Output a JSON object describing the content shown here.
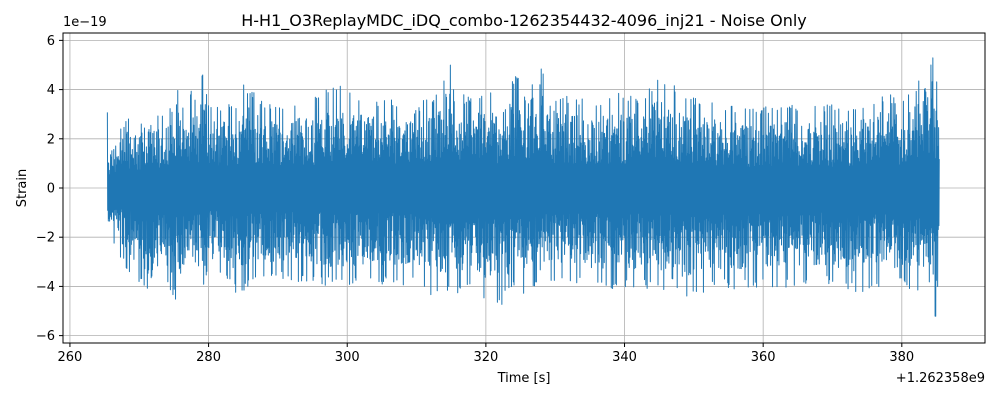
{
  "chart_data": {
    "type": "line",
    "title": "H-H1_O3ReplayMDC_iDQ_combo-1262354432-4096_inj21 - Noise Only",
    "xlabel": "Time [s]",
    "ylabel": "Strain",
    "x_offset_label": "+1.262358e9",
    "y_scale_label": "1e−19",
    "xlim": [
      259,
      392
    ],
    "ylim": [
      -6.3,
      6.3
    ],
    "x_ticks": [
      260,
      280,
      300,
      320,
      340,
      360,
      380
    ],
    "x_tick_labels": [
      "260",
      "280",
      "300",
      "320",
      "340",
      "360",
      "380"
    ],
    "y_ticks": [
      -6,
      -4,
      -2,
      0,
      2,
      4,
      6
    ],
    "y_tick_labels": [
      "−6",
      "−4",
      "−2",
      "0",
      "2",
      "4",
      "6"
    ],
    "grid": true,
    "line_color": "#1f77b4",
    "series": [
      {
        "x_range": [
          265.4,
          385.4
        ],
        "x": [
          265.4,
          265.5,
          268.2,
          270.0,
          271.5,
          273.5,
          274.5,
          275.2,
          276.5,
          277.5,
          278.5,
          279.4,
          279.8,
          282.0,
          284.6,
          285.0,
          287.0,
          288.5,
          290.5,
          293.5,
          295.0,
          297.0,
          299.0,
          302.0,
          304.0,
          306.0,
          308.0,
          310.0,
          311.2,
          312.0,
          315.0,
          315.4,
          318.0,
          319.5,
          322.0,
          324.0,
          325.5,
          327.0,
          327.9,
          330.0,
          332.0,
          335.0,
          338.0,
          340.0,
          342.5,
          345.0,
          347.5,
          348.3,
          350.0,
          353.0,
          354.0,
          357.0,
          360.0,
          363.0,
          366.0,
          369.0,
          372.0,
          375.0,
          377.0,
          380.0,
          382.0,
          383.3,
          383.8,
          384.4,
          384.8,
          385.2,
          385.4
        ],
        "upper": [
          3.1,
          1.8,
          2.9,
          2.7,
          3.5,
          3.0,
          3.6,
          4.7,
          3.3,
          4.0,
          3.7,
          5.4,
          3.4,
          3.4,
          3.6,
          4.4,
          3.8,
          3.5,
          3.4,
          3.6,
          3.6,
          4.1,
          4.2,
          3.8,
          3.7,
          3.6,
          3.6,
          4.3,
          3.8,
          3.6,
          5.2,
          3.9,
          3.7,
          3.9,
          3.9,
          4.5,
          4.8,
          4.6,
          5.4,
          3.8,
          3.8,
          3.6,
          3.8,
          3.9,
          3.7,
          4.6,
          4.1,
          3.7,
          3.7,
          3.6,
          3.5,
          3.3,
          3.3,
          3.4,
          3.3,
          3.4,
          3.4,
          3.6,
          3.9,
          3.7,
          4.2,
          5.5,
          4.6,
          5.7,
          3.6,
          4.9,
          1.8
        ],
        "lower": [
          -2.9,
          -2.0,
          -3.3,
          -3.9,
          -4.7,
          -3.8,
          -4.3,
          -4.6,
          -4.3,
          -4.1,
          -4.0,
          -4.2,
          -3.6,
          -3.6,
          -4.5,
          -4.4,
          -3.7,
          -3.8,
          -3.7,
          -3.9,
          -3.8,
          -4.0,
          -4.1,
          -3.9,
          -4.0,
          -3.9,
          -4.1,
          -3.9,
          -4.3,
          -4.5,
          -4.3,
          -4.6,
          -3.9,
          -4.5,
          -4.9,
          -4.1,
          -4.5,
          -4.2,
          -4.3,
          -3.8,
          -3.8,
          -4.1,
          -4.3,
          -4.1,
          -4.1,
          -4.2,
          -4.0,
          -4.8,
          -4.3,
          -4.2,
          -4.1,
          -4.1,
          -4.0,
          -4.1,
          -3.9,
          -3.9,
          -4.3,
          -4.2,
          -4.2,
          -4.0,
          -4.4,
          -4.7,
          -5.7,
          -4.9,
          -5.5,
          -5.3,
          -2.0
        ]
      }
    ]
  }
}
